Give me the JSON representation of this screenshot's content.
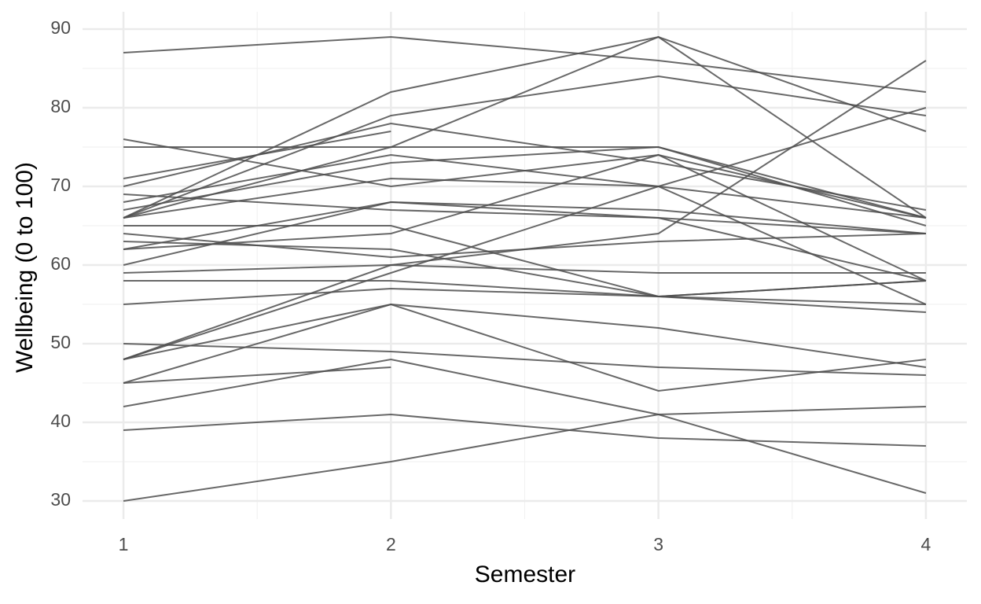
{
  "chart_data": {
    "type": "line",
    "x_label": "Semester",
    "y_label": "Wellbeing (0 to 100)",
    "x": [
      1,
      2,
      3,
      4
    ],
    "xlim": [
      0.847,
      4.153
    ],
    "xticks": [
      1,
      2,
      3,
      4
    ],
    "ylim": [
      27.7,
      92.2
    ],
    "yticks": [
      30,
      40,
      50,
      60,
      70,
      80,
      90
    ],
    "grid": true,
    "line_color": "#4d4d4d",
    "series": [
      {
        "values": [
          87,
          89,
          86,
          82
        ]
      },
      {
        "values": [
          30,
          35,
          41,
          42
        ]
      },
      {
        "values": [
          39,
          41,
          38,
          37
        ]
      },
      {
        "values": [
          42,
          48,
          41,
          31
        ]
      },
      {
        "values": [
          45,
          47,
          null,
          null
        ]
      },
      {
        "values": [
          45,
          55,
          44,
          48
        ]
      },
      {
        "values": [
          48,
          55,
          52,
          47
        ]
      },
      {
        "values": [
          50,
          49,
          47,
          46
        ]
      },
      {
        "values": [
          55,
          57,
          56,
          54
        ]
      },
      {
        "values": [
          58,
          58,
          56,
          58
        ]
      },
      {
        "values": [
          59,
          60,
          59,
          59
        ]
      },
      {
        "values": [
          60,
          68,
          67,
          64
        ]
      },
      {
        "values": [
          62,
          68,
          66,
          64
        ]
      },
      {
        "values": [
          62,
          64,
          74,
          58
        ]
      },
      {
        "values": [
          63,
          62,
          56,
          58
        ]
      },
      {
        "values": [
          64,
          61,
          63,
          64
        ]
      },
      {
        "values": [
          66,
          75,
          89,
          66
        ]
      },
      {
        "values": [
          66,
          82,
          89,
          77
        ]
      },
      {
        "values": [
          66,
          79,
          84,
          79
        ]
      },
      {
        "values": [
          71,
          77,
          null,
          null
        ]
      },
      {
        "values": [
          75,
          75,
          75,
          66
        ]
      },
      {
        "values": [
          76,
          70,
          74,
          66
        ]
      },
      {
        "values": [
          69,
          67,
          66,
          58
        ]
      },
      {
        "values": [
          70,
          78,
          73,
          67
        ]
      },
      {
        "values": [
          67,
          73,
          75,
          65
        ]
      },
      {
        "values": [
          66,
          71,
          70,
          66
        ]
      },
      {
        "values": [
          68,
          74,
          70,
          55
        ]
      },
      {
        "values": [
          48,
          59,
          70,
          80
        ]
      },
      {
        "values": [
          48,
          60,
          64,
          86
        ]
      },
      {
        "values": [
          65,
          65,
          56,
          55
        ]
      }
    ]
  }
}
